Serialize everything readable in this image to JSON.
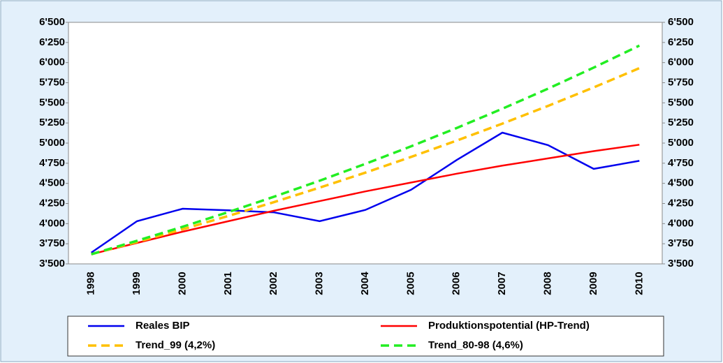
{
  "chart_data": {
    "type": "line",
    "categories": [
      "1998",
      "1999",
      "2000",
      "2001",
      "2002",
      "2003",
      "2004",
      "2005",
      "2006",
      "2007",
      "2008",
      "2009",
      "2010"
    ],
    "series": [
      {
        "name": "Reales BIP",
        "color": "#0000ee",
        "dashed": false,
        "values": [
          3640,
          4030,
          4185,
          4165,
          4140,
          4030,
          4170,
          4420,
          4790,
          5130,
          4975,
          4680,
          4780
        ]
      },
      {
        "name": "Produktionspotential (HP-Trend)",
        "color": "#ff0000",
        "dashed": false,
        "values": [
          3620,
          3760,
          3900,
          4030,
          4160,
          4280,
          4400,
          4510,
          4620,
          4720,
          4810,
          4900,
          4980
        ]
      },
      {
        "name": "Trend_99 (4,2%)",
        "color": "#ffc000",
        "dashed": true,
        "values": [
          3620,
          3772,
          3930,
          4095,
          4267,
          4447,
          4633,
          4828,
          5031,
          5242,
          5462,
          5692,
          5931
        ]
      },
      {
        "name": "Trend_80-98 (4,6%)",
        "color": "#22ee22",
        "dashed": true,
        "values": [
          3620,
          3787,
          3961,
          4143,
          4334,
          4533,
          4742,
          4960,
          5188,
          5427,
          5676,
          5938,
          6211
        ]
      }
    ],
    "ylim": [
      3500,
      6500
    ],
    "yticks": [
      {
        "value": 3500,
        "label": "3'500"
      },
      {
        "value": 3750,
        "label": "3'750"
      },
      {
        "value": 4000,
        "label": "4'000"
      },
      {
        "value": 4250,
        "label": "4'250"
      },
      {
        "value": 4500,
        "label": "4'500"
      },
      {
        "value": 4750,
        "label": "4'750"
      },
      {
        "value": 5000,
        "label": "5'000"
      },
      {
        "value": 5250,
        "label": "5'250"
      },
      {
        "value": 5500,
        "label": "5'500"
      },
      {
        "value": 5750,
        "label": "5'750"
      },
      {
        "value": 6000,
        "label": "6'000"
      },
      {
        "value": 6250,
        "label": "6'250"
      },
      {
        "value": 6500,
        "label": "6'500"
      }
    ],
    "y2lim": [
      3500,
      6500
    ],
    "y2ticks": [
      {
        "value": 3500,
        "label": "3'500"
      },
      {
        "value": 3750,
        "label": "3'750"
      },
      {
        "value": 4000,
        "label": "4'000"
      },
      {
        "value": 4250,
        "label": "4'250"
      },
      {
        "value": 4500,
        "label": "4'500"
      },
      {
        "value": 4750,
        "label": "4'750"
      },
      {
        "value": 5000,
        "label": "5'000"
      },
      {
        "value": 5250,
        "label": "5'250"
      },
      {
        "value": 5500,
        "label": "5'500"
      },
      {
        "value": 5750,
        "label": "5'750"
      },
      {
        "value": 6000,
        "label": "6'000"
      },
      {
        "value": 6250,
        "label": "6'250"
      },
      {
        "value": 6500,
        "label": "6'500"
      }
    ],
    "grid": false,
    "legend": "bottom"
  }
}
